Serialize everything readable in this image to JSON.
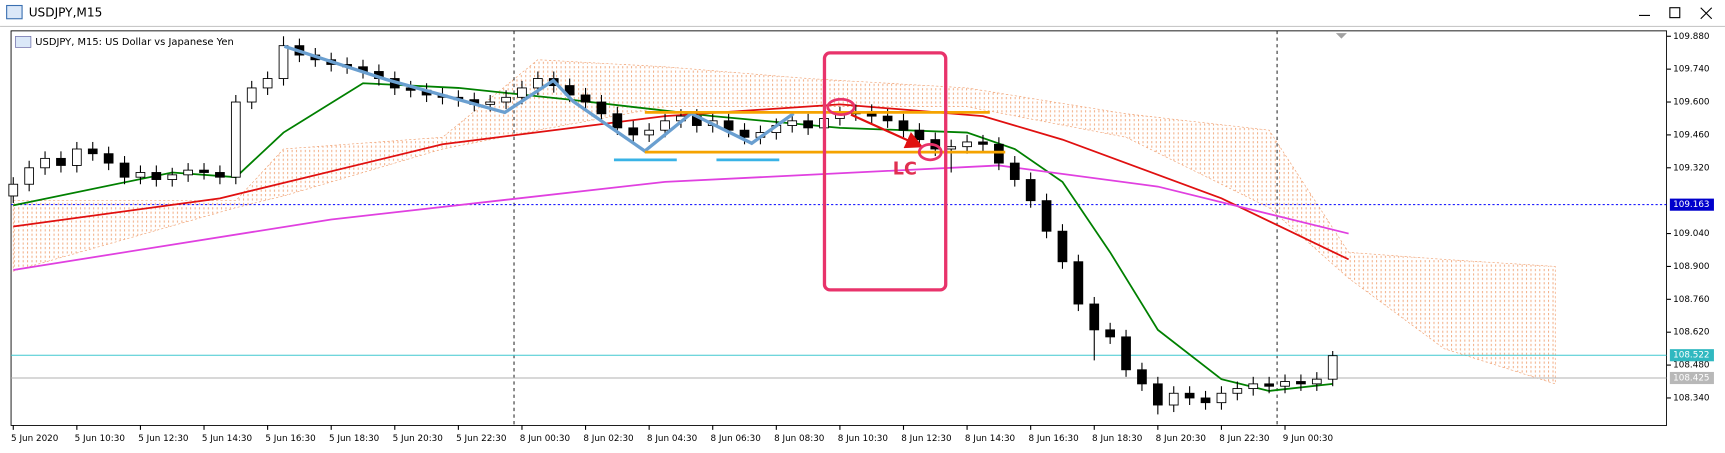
{
  "window_title": "USDJPY,M15",
  "chart_data": {
    "type": "candlestick",
    "title": "USDJPY, M15:  US Dollar vs Japanese Yen",
    "annotation": "LC",
    "up_color": "#ffffff",
    "down_color": "#000000",
    "outline_color": "#000000",
    "ylim": [
      108.223,
      109.903
    ],
    "yticks": [
      {
        "value": 109.88,
        "label": "109.880"
      },
      {
        "value": 109.74,
        "label": "109.740"
      },
      {
        "value": 109.6,
        "label": "109.600"
      },
      {
        "value": 109.46,
        "label": "109.460"
      },
      {
        "value": 109.32,
        "label": "109.320"
      },
      {
        "value": 109.04,
        "label": "109.040"
      },
      {
        "value": 108.9,
        "label": "108.900"
      },
      {
        "value": 108.76,
        "label": "108.760"
      },
      {
        "value": 108.62,
        "label": "108.620"
      },
      {
        "value": 108.48,
        "label": "108.480"
      },
      {
        "value": 108.34,
        "label": "108.340"
      }
    ],
    "xlim": [
      0,
      104
    ],
    "xticks": [
      {
        "value": 0,
        "label": "5 Jun 2020"
      },
      {
        "value": 4,
        "label": "5 Jun 10:30"
      },
      {
        "value": 8,
        "label": "5 Jun 12:30"
      },
      {
        "value": 12,
        "label": "5 Jun 14:30"
      },
      {
        "value": 16,
        "label": "5 Jun 16:30"
      },
      {
        "value": 20,
        "label": "5 Jun 18:30"
      },
      {
        "value": 24,
        "label": "5 Jun 20:30"
      },
      {
        "value": 28,
        "label": "5 Jun 22:30"
      },
      {
        "value": 32,
        "label": "8 Jun 00:30"
      },
      {
        "value": 36,
        "label": "8 Jun 02:30"
      },
      {
        "value": 40,
        "label": "8 Jun 04:30"
      },
      {
        "value": 44,
        "label": "8 Jun 06:30"
      },
      {
        "value": 48,
        "label": "8 Jun 08:30"
      },
      {
        "value": 52,
        "label": "8 Jun 10:30"
      },
      {
        "value": 56,
        "label": "8 Jun 12:30"
      },
      {
        "value": 60,
        "label": "8 Jun 14:30"
      },
      {
        "value": 64,
        "label": "8 Jun 16:30"
      },
      {
        "value": 68,
        "label": "8 Jun 18:30"
      },
      {
        "value": 72,
        "label": "8 Jun 20:30"
      },
      {
        "value": 76,
        "label": "8 Jun 22:30"
      },
      {
        "value": 80,
        "label": "9 Jun 00:30"
      }
    ],
    "separators": [
      31.5,
      79.5
    ],
    "hlines": [
      {
        "value": 109.163,
        "color": "#0000ff",
        "label_bg": "#0000cc"
      },
      {
        "value": 108.522,
        "color": "#40c8d0",
        "label_bg": "#30b8c0"
      },
      {
        "value": 108.425,
        "color": "#b0b0b0",
        "label_bg": "#b8b8b8"
      }
    ],
    "open": [
      109.2,
      109.25,
      109.32,
      109.36,
      109.33,
      109.4,
      109.38,
      109.34,
      109.28,
      109.3,
      109.27,
      109.29,
      109.31,
      109.3,
      109.28,
      109.6,
      109.66,
      109.7,
      109.84,
      109.8,
      109.78,
      109.76,
      109.75,
      109.73,
      109.7,
      109.66,
      109.65,
      109.63,
      109.62,
      109.61,
      109.59,
      109.6,
      109.62,
      109.66,
      109.7,
      109.67,
      109.63,
      109.6,
      109.55,
      109.49,
      109.46,
      109.48,
      109.52,
      109.54,
      109.5,
      109.52,
      109.48,
      109.45,
      109.47,
      109.5,
      109.52,
      109.49,
      109.53,
      109.55,
      109.56,
      109.54,
      109.52,
      109.48,
      109.44,
      109.4,
      109.41,
      109.43,
      109.42,
      109.34,
      109.27,
      109.18,
      109.05,
      108.92,
      108.74,
      108.63,
      108.6,
      108.46,
      108.4,
      108.31,
      108.36,
      108.34,
      108.32,
      108.36,
      108.38,
      108.4,
      108.39,
      108.41,
      108.4,
      108.42
    ],
    "high": [
      109.28,
      109.35,
      109.39,
      109.39,
      109.43,
      109.43,
      109.41,
      109.37,
      109.33,
      109.33,
      109.32,
      109.34,
      109.34,
      109.33,
      109.63,
      109.69,
      109.73,
      109.88,
      109.87,
      109.83,
      109.81,
      109.79,
      109.78,
      109.76,
      109.73,
      109.69,
      109.68,
      109.66,
      109.65,
      109.64,
      109.63,
      109.65,
      109.69,
      109.73,
      109.73,
      109.7,
      109.66,
      109.63,
      109.58,
      109.52,
      109.51,
      109.55,
      109.57,
      109.57,
      109.55,
      109.55,
      109.51,
      109.5,
      109.53,
      109.55,
      109.55,
      109.56,
      109.58,
      109.59,
      109.59,
      109.57,
      109.55,
      109.51,
      109.47,
      109.44,
      109.46,
      109.46,
      109.45,
      109.37,
      109.3,
      109.21,
      109.08,
      108.95,
      108.77,
      108.66,
      108.63,
      108.49,
      108.43,
      108.39,
      108.39,
      108.37,
      108.39,
      108.41,
      108.43,
      108.43,
      108.44,
      108.44,
      108.45,
      108.54
    ],
    "low": [
      109.17,
      109.22,
      109.29,
      109.3,
      109.3,
      109.35,
      109.31,
      109.25,
      109.25,
      109.24,
      109.24,
      109.26,
      109.27,
      109.25,
      109.25,
      109.57,
      109.63,
      109.67,
      109.77,
      109.75,
      109.73,
      109.72,
      109.7,
      109.67,
      109.63,
      109.62,
      109.6,
      109.59,
      109.58,
      109.56,
      109.56,
      109.57,
      109.59,
      109.63,
      109.64,
      109.6,
      109.57,
      109.52,
      109.46,
      109.43,
      109.43,
      109.45,
      109.49,
      109.47,
      109.47,
      109.45,
      109.42,
      109.42,
      109.44,
      109.47,
      109.46,
      109.46,
      109.5,
      109.52,
      109.51,
      109.49,
      109.45,
      109.41,
      109.37,
      109.3,
      109.38,
      109.39,
      109.31,
      109.24,
      109.15,
      109.02,
      108.89,
      108.71,
      108.5,
      108.57,
      108.43,
      108.37,
      108.27,
      108.28,
      108.31,
      108.29,
      108.29,
      108.33,
      108.35,
      108.36,
      108.36,
      108.37,
      108.37,
      108.39
    ],
    "close": [
      109.25,
      109.32,
      109.36,
      109.33,
      109.4,
      109.38,
      109.34,
      109.28,
      109.3,
      109.27,
      109.29,
      109.31,
      109.3,
      109.28,
      109.6,
      109.66,
      109.7,
      109.84,
      109.8,
      109.78,
      109.76,
      109.75,
      109.73,
      109.7,
      109.66,
      109.65,
      109.63,
      109.62,
      109.61,
      109.59,
      109.6,
      109.62,
      109.66,
      109.7,
      109.67,
      109.63,
      109.6,
      109.55,
      109.49,
      109.46,
      109.48,
      109.52,
      109.54,
      109.5,
      109.52,
      109.48,
      109.45,
      109.47,
      109.5,
      109.52,
      109.49,
      109.53,
      109.55,
      109.56,
      109.54,
      109.52,
      109.48,
      109.44,
      109.4,
      109.41,
      109.43,
      109.42,
      109.34,
      109.27,
      109.18,
      109.05,
      108.92,
      108.74,
      108.63,
      108.6,
      108.46,
      108.4,
      108.31,
      108.36,
      108.34,
      108.32,
      108.36,
      108.38,
      108.4,
      108.39,
      108.41,
      108.4,
      108.42,
      108.52
    ],
    "series": [
      {
        "color": "#008000",
        "x": [
          0,
          10,
          14,
          17,
          22,
          28,
          35,
          44,
          52,
          60,
          63,
          66,
          69,
          72,
          76,
          79,
          83
        ],
        "values": [
          109.16,
          109.3,
          109.28,
          109.47,
          109.68,
          109.66,
          109.61,
          109.54,
          109.49,
          109.47,
          109.4,
          109.26,
          108.96,
          108.63,
          108.42,
          108.37,
          108.4
        ]
      },
      {
        "color": "#e01010",
        "x": [
          0,
          13,
          27,
          41,
          52,
          61,
          66,
          76,
          84
        ],
        "values": [
          109.07,
          109.19,
          109.42,
          109.54,
          109.59,
          109.54,
          109.44,
          109.19,
          108.93
        ]
      },
      {
        "color": "#e040e0",
        "x": [
          0,
          20,
          41,
          62,
          72,
          84
        ],
        "values": [
          108.885,
          109.1,
          109.26,
          109.33,
          109.24,
          109.04
        ]
      }
    ],
    "cloud": {
      "color": "#f0a070",
      "x": [
        0,
        14,
        17,
        27,
        33,
        41,
        50,
        60,
        70,
        79,
        84,
        90,
        97
      ],
      "upper": [
        109.18,
        109.18,
        109.4,
        109.45,
        109.78,
        109.75,
        109.7,
        109.66,
        109.55,
        109.48,
        108.96,
        108.93,
        108.9
      ],
      "lower": [
        108.88,
        109.15,
        109.2,
        109.4,
        109.48,
        109.58,
        109.58,
        109.58,
        109.45,
        109.15,
        108.85,
        108.55,
        108.4
      ]
    }
  }
}
